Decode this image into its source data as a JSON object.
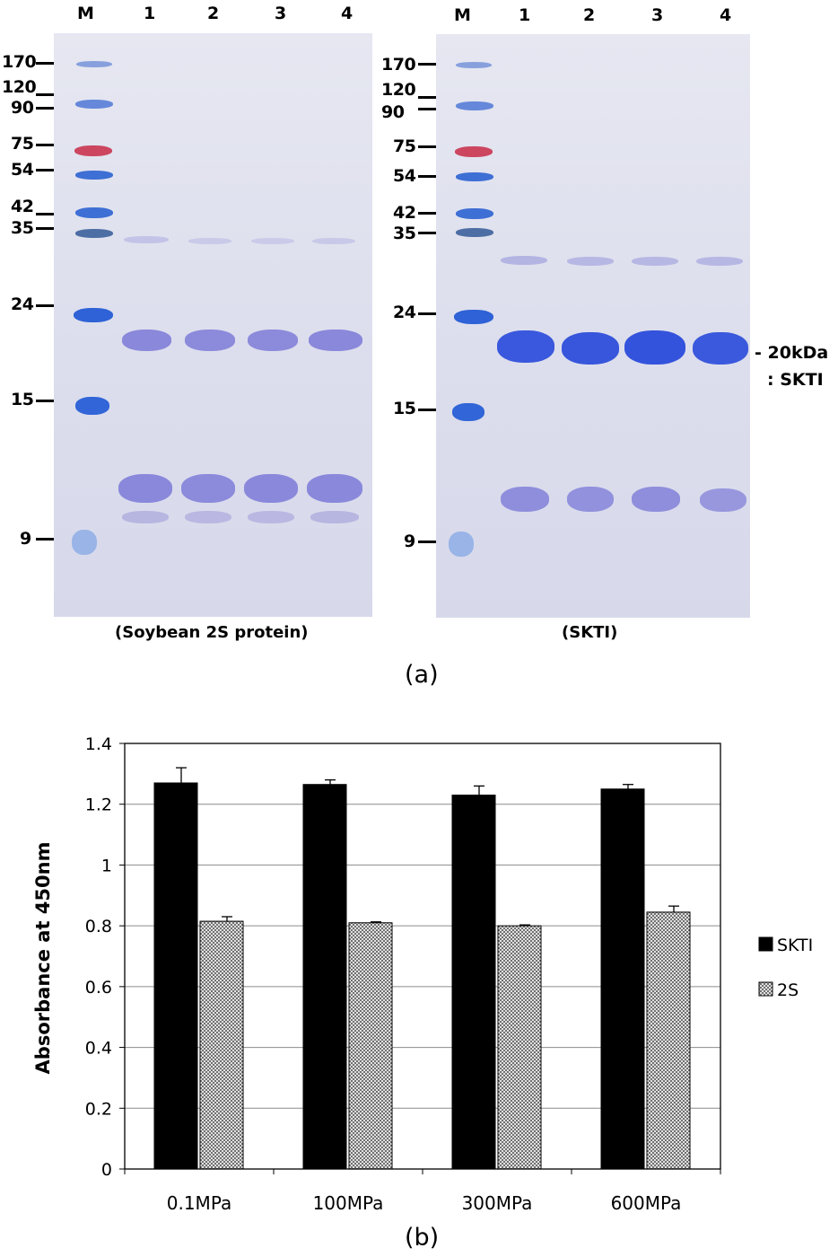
{
  "panel_a": {
    "caption": "(a)",
    "gels": [
      {
        "lane_labels": [
          "M",
          "1",
          "2",
          "3",
          "4"
        ],
        "title": "(Soybean 2S protein)",
        "markers": [
          "170",
          "120",
          "90",
          "75",
          "54",
          "42",
          "35",
          "24",
          "15",
          "9"
        ]
      },
      {
        "lane_labels": [
          "M",
          "1",
          "2",
          "3",
          "4"
        ],
        "title": "(SKTI)",
        "markers": [
          "170",
          "120",
          "90",
          "75",
          "54",
          "42",
          "35",
          "24",
          "15",
          "9"
        ]
      }
    ],
    "annotation_line1": "- 20kDa",
    "annotation_line2": ": SKTI"
  },
  "panel_b": {
    "caption": "(b)"
  },
  "chart_data": {
    "type": "bar",
    "categories": [
      "0.1MPa",
      "100MPa",
      "300MPa",
      "600MPa"
    ],
    "series": [
      {
        "name": "SKTI",
        "values": [
          1.27,
          1.265,
          1.23,
          1.25
        ],
        "errors": [
          0.05,
          0.015,
          0.03,
          0.015
        ],
        "color": "#000000"
      },
      {
        "name": "2S",
        "values": [
          0.815,
          0.81,
          0.8,
          0.845
        ],
        "errors": [
          0.015,
          0.003,
          0.003,
          0.02
        ],
        "color": "#d0d0d0"
      }
    ],
    "title": "",
    "xlabel": "",
    "ylabel": "Absorbance at 450nm",
    "ylim": [
      0,
      1.4
    ],
    "yticks": [
      0,
      0.2,
      0.4,
      0.6,
      0.8,
      1.0,
      1.2,
      1.4
    ],
    "ytick_labels": [
      "0",
      "0.2",
      "0.4",
      "0.6",
      "0.8",
      "1",
      "1.2",
      "1.4"
    ],
    "grid": true,
    "legend": "right"
  }
}
